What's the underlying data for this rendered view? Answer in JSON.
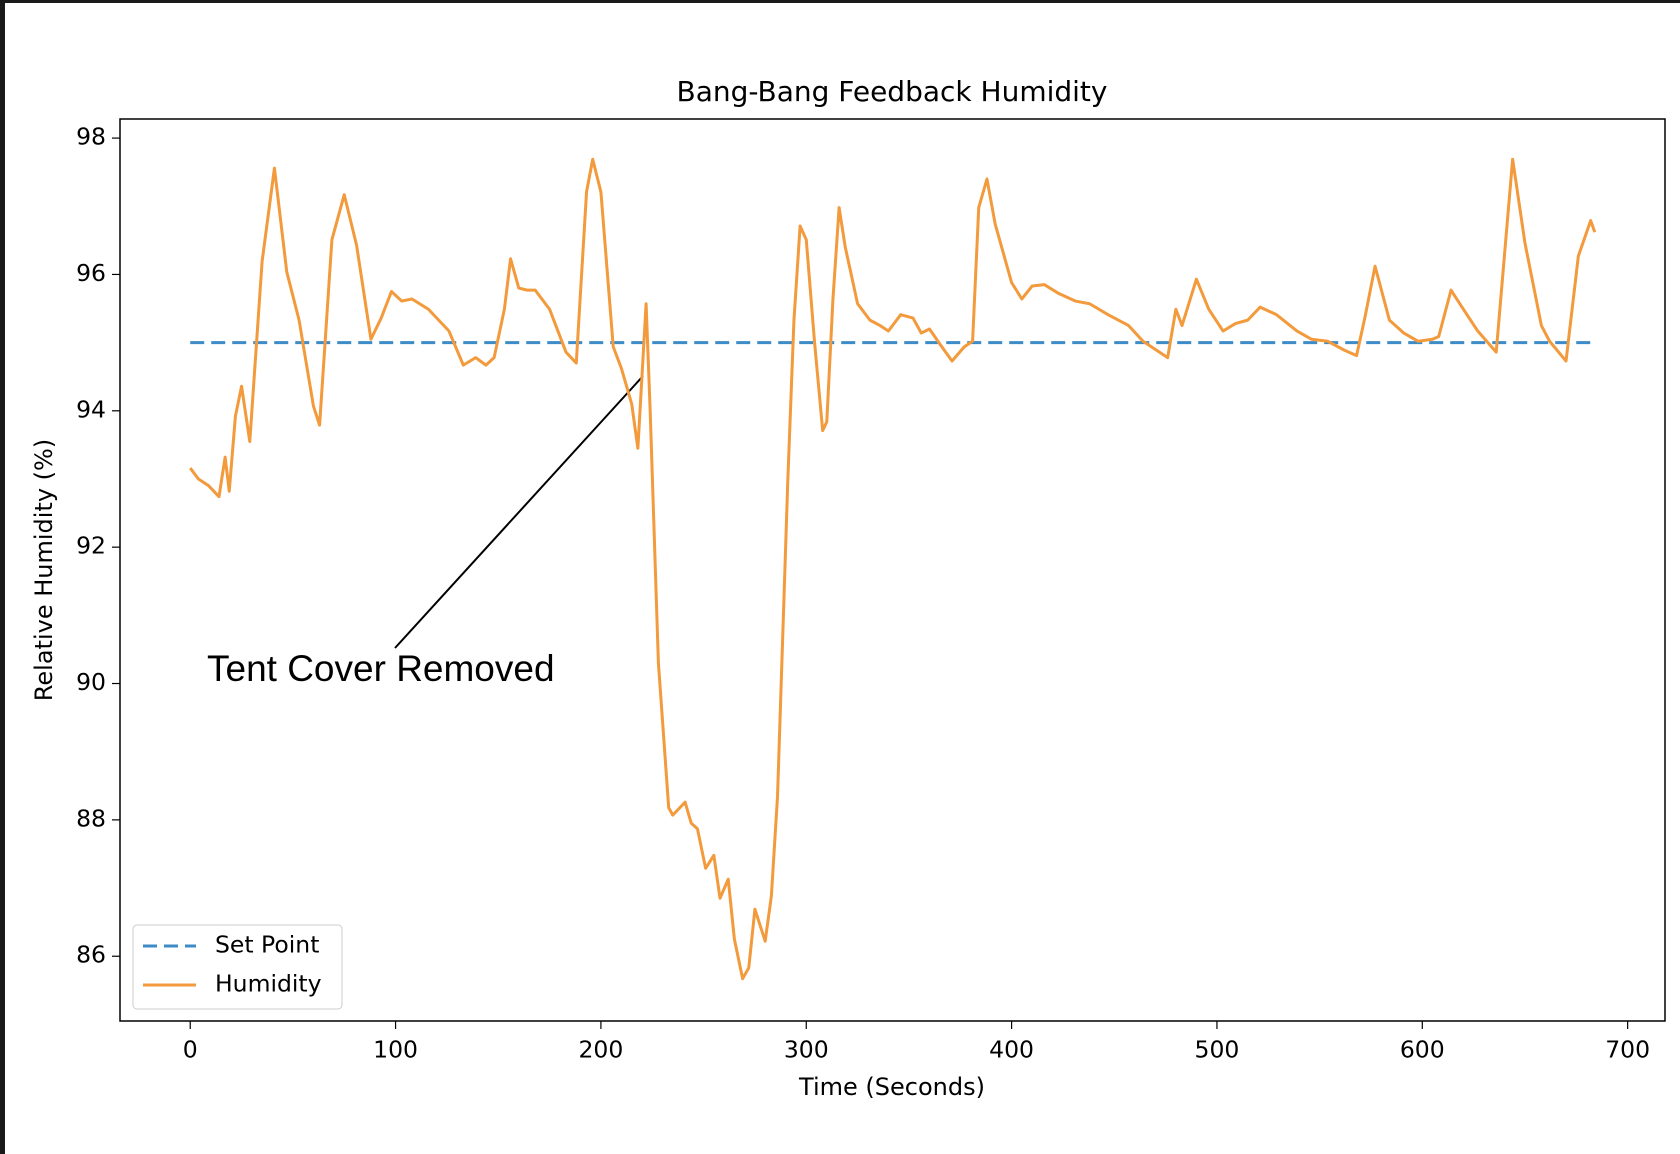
{
  "chart_data": {
    "type": "line",
    "title": "Bang-Bang Feedback Humidity",
    "x_label": "Time (Seconds)",
    "y_label": "Relative Humidity (%)",
    "annotation": "Tent Cover Removed",
    "xlim": [
      -34.2,
      718.2
    ],
    "ylim": [
      85.05,
      98.28
    ],
    "xticks": [
      0,
      100,
      200,
      300,
      400,
      500,
      600,
      700
    ],
    "yticks": [
      86,
      88,
      90,
      92,
      94,
      96,
      98
    ],
    "grid": false,
    "legend": "lower left",
    "series": [
      {
        "name": "Set Point",
        "color": "#3d8bc7",
        "style": "dashed",
        "x": [
          0,
          684
        ],
        "values": [
          95,
          95
        ]
      },
      {
        "name": "Humidity",
        "color": "#f29a3c",
        "style": "solid",
        "x": [
          0,
          4,
          9,
          14,
          17,
          19,
          22,
          25,
          29,
          35,
          41,
          47,
          53,
          60,
          63,
          69,
          75,
          81,
          88,
          93,
          98,
          103,
          108,
          116,
          126,
          133,
          139,
          144,
          148,
          153,
          156,
          160,
          164,
          168,
          175,
          183,
          188,
          193,
          196,
          200,
          206,
          210,
          215,
          218,
          222,
          224,
          228,
          233,
          235,
          241,
          244,
          247,
          251,
          255,
          258,
          262,
          265,
          269,
          272,
          275,
          280,
          283,
          286,
          291,
          294,
          297,
          300,
          304,
          308,
          310,
          313,
          316,
          319,
          325,
          331,
          336,
          340,
          346,
          352,
          356,
          360,
          366,
          371,
          377,
          381,
          384,
          388,
          392,
          400,
          405,
          410,
          416,
          423,
          431,
          438,
          447,
          457,
          464,
          476,
          480,
          483,
          490,
          496,
          503,
          509,
          515,
          521,
          529,
          539,
          546,
          554,
          562,
          568,
          572,
          577,
          584,
          591,
          598,
          605,
          608,
          614,
          620,
          627,
          636,
          644,
          650,
          658,
          662,
          670,
          676,
          682,
          684
        ],
        "values": [
          93.16,
          93.0,
          92.9,
          92.74,
          93.32,
          92.82,
          93.92,
          94.36,
          93.55,
          96.19,
          97.56,
          96.04,
          95.33,
          94.07,
          93.79,
          96.51,
          97.17,
          96.43,
          95.05,
          95.36,
          95.75,
          95.61,
          95.64,
          95.49,
          95.17,
          94.67,
          94.78,
          94.67,
          94.78,
          95.49,
          96.23,
          95.8,
          95.77,
          95.77,
          95.49,
          94.86,
          94.7,
          97.21,
          97.69,
          97.21,
          94.94,
          94.62,
          94.1,
          93.45,
          95.57,
          93.99,
          90.3,
          88.18,
          88.07,
          88.26,
          87.95,
          87.87,
          87.29,
          87.48,
          86.85,
          87.13,
          86.25,
          85.67,
          85.83,
          86.69,
          86.22,
          86.88,
          88.34,
          92.97,
          95.33,
          96.71,
          96.51,
          95.02,
          93.71,
          93.84,
          95.64,
          96.98,
          96.4,
          95.57,
          95.33,
          95.25,
          95.17,
          95.41,
          95.36,
          95.14,
          95.2,
          94.94,
          94.73,
          94.94,
          95.02,
          96.98,
          97.4,
          96.74,
          95.88,
          95.64,
          95.83,
          95.85,
          95.72,
          95.61,
          95.57,
          95.41,
          95.25,
          95.02,
          94.78,
          95.49,
          95.25,
          95.93,
          95.49,
          95.17,
          95.28,
          95.33,
          95.52,
          95.41,
          95.17,
          95.05,
          95.02,
          94.89,
          94.81,
          95.36,
          96.12,
          95.33,
          95.14,
          95.02,
          95.05,
          95.09,
          95.77,
          95.49,
          95.17,
          94.86,
          97.69,
          96.46,
          95.25,
          95.02,
          94.73,
          96.27,
          96.79,
          96.62
        ]
      }
    ]
  }
}
